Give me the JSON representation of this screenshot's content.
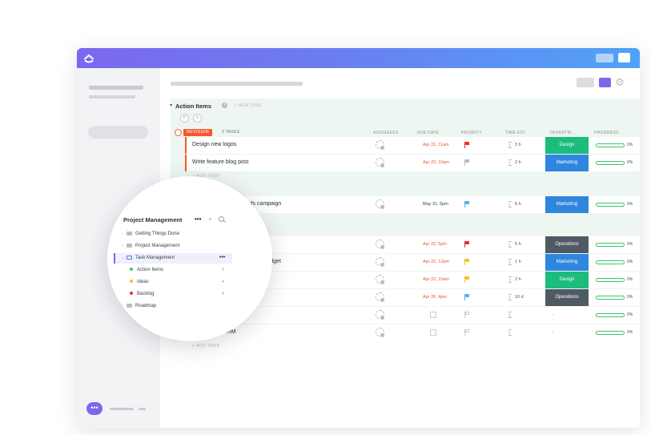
{
  "colors": {
    "brand_purple": "#7b68ee",
    "revision": "#f5592e",
    "review": "#f9c21b",
    "in_progress": "#0f9ff2",
    "design": "#1bbc7c",
    "marketing": "#2e86de",
    "operations": "#505a65",
    "due_red": "#e4572e",
    "progress_green": "#3cc46b"
  },
  "list": {
    "title": "Action Items",
    "new_task": "+ NEW TASK"
  },
  "columns": {
    "assignees": "ASSIGNEES",
    "due_date": "DUE DATE",
    "priority": "PRIORITY",
    "time_est": "TIME EST.",
    "department": "DEPARTM...",
    "progress": "PROGRESS"
  },
  "groups": [
    {
      "status": "REVISION",
      "count": "2 TASKS",
      "color": "#f5592e",
      "add_task": "+ ADD TASK",
      "tasks": [
        {
          "name": "Design new logos",
          "due": "Apr 22, 11am",
          "due_color": "#e4572e",
          "priority": "red",
          "time": "3 h",
          "department": "Design",
          "progress": "0%"
        },
        {
          "name": "Write feature blog post",
          "due": "Apr 23, 10am",
          "due_color": "#e4572e",
          "priority": "gray",
          "time": "2 h",
          "department": "Marketing",
          "progress": "0%"
        }
      ]
    },
    {
      "status": "REVIEW",
      "count": "1 TASK",
      "color": "#f9c21b",
      "add_task": "+ ADD TASK",
      "tasks": [
        {
          "name": "Run productivity Adwords campaign",
          "due": "May 31, 5pm",
          "due_color": "#3a3e45",
          "priority": "blue",
          "time": "6 h",
          "department": "Marketing",
          "progress": "0%"
        }
      ]
    },
    {
      "status": "IN PROGRESS",
      "count": "6 TASKS",
      "color": "#0f9ff2",
      "add_task": "+ ADD TASK",
      "tasks": [
        {
          "name": "Set up Google Analytics funnel",
          "due": "Apr 22, 5pm",
          "due_color": "#e4572e",
          "priority": "red",
          "time": "5 h",
          "department": "Operations",
          "progress": "0%"
        },
        {
          "name": "Organize monthly marketing budget",
          "due": "Apr 22, 12pm",
          "due_color": "#e4572e",
          "priority": "yellow",
          "time": "1 h",
          "department": "Marketing",
          "progress": "0%"
        },
        {
          "name": "Draft new landing page",
          "due": "Apr 22, 10am",
          "due_color": "#e4572e",
          "priority": "yellow",
          "time": "2 h",
          "department": "Design",
          "progress": "0%"
        },
        {
          "name": "Hire VP of marketing",
          "due": "Apr 26, 4pm",
          "due_color": "#e4572e",
          "priority": "blue",
          "time": "10 d",
          "department": "Operations",
          "progress": "0%"
        },
        {
          "name": "New hire training",
          "due": "",
          "due_color": "",
          "priority": "empty",
          "time": "",
          "department": "-",
          "progress": "0%"
        },
        {
          "name": "Deploy new CRM",
          "due": "",
          "due_color": "",
          "priority": "empty",
          "time": "",
          "department": "-",
          "progress": "0%"
        }
      ]
    }
  ],
  "sidebar_popup": {
    "title": "Project Management",
    "dots": "•••",
    "plus": "+",
    "items": [
      {
        "label": "Getting Things Done"
      },
      {
        "label": "Project Management"
      },
      {
        "label": "Task Management",
        "dots": "•••"
      }
    ],
    "sub_items": [
      {
        "label": "Action Items",
        "count": "9",
        "dot": "#3cc46b"
      },
      {
        "label": "Ideas",
        "count": "4",
        "dot": "#f9c21b"
      },
      {
        "label": "Backlog",
        "count": "4",
        "dot": "#e4322e"
      }
    ],
    "last_item": "Roadmap"
  },
  "chat_icon": "•••"
}
